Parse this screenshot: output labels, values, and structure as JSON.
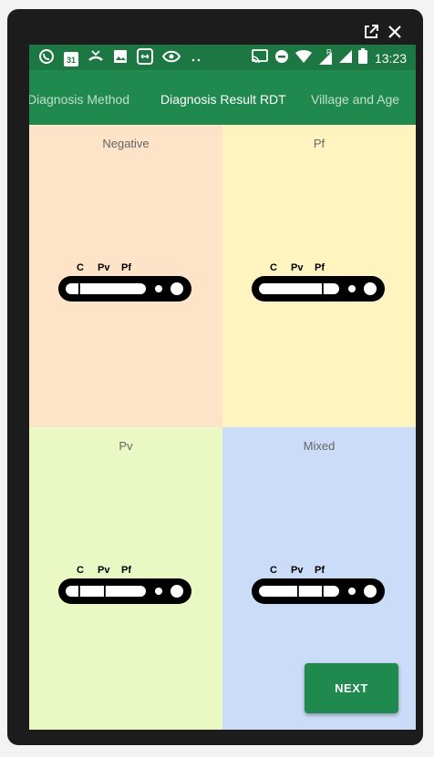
{
  "status_bar": {
    "time": "13:23",
    "icons_left": [
      "whatsapp-icon",
      "calendar-icon",
      "missed-call-icon",
      "image-icon",
      "sync-icon",
      "eye-icon",
      "more-dots-icon"
    ],
    "icons_right": [
      "cast-icon",
      "do-not-disturb-icon",
      "wifi-icon",
      "signal-roaming-icon",
      "signal-icon",
      "battery-icon"
    ],
    "calendar_day": "31",
    "roaming": "R"
  },
  "tabs": [
    {
      "label": "Diagnosis Method",
      "active": false
    },
    {
      "label": "Diagnosis Result RDT",
      "active": true
    },
    {
      "label": "Village and Age",
      "active": false
    }
  ],
  "rdt_labels": {
    "c": "C",
    "pv": "Pv",
    "pf": "Pf"
  },
  "results": [
    {
      "title": "Negative",
      "bg": "#fde3c8",
      "lines": [
        "C"
      ]
    },
    {
      "title": "Pf",
      "bg": "#fff4c0",
      "lines": [
        "Pf"
      ]
    },
    {
      "title": "Pv",
      "bg": "#eaf9c4",
      "lines": [
        "C",
        "Pv"
      ]
    },
    {
      "title": "Mixed",
      "bg": "#cbdcf8",
      "lines": [
        "Pv",
        "Pf"
      ]
    }
  ],
  "next_button": {
    "label": "NEXT",
    "color": "#20894d"
  },
  "colors": {
    "status_bar": "#1d7742",
    "tab_bar": "#20894d"
  }
}
